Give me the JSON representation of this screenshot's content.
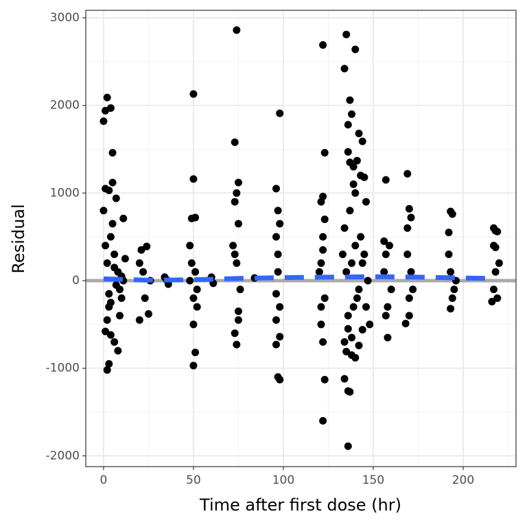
{
  "chart_data": {
    "type": "scatter",
    "x_label": "Time after first dose (hr)",
    "y_label": "Residual",
    "xlim": [
      -9.9,
      229.4
    ],
    "ylim": [
      -2123,
      3086
    ],
    "xticks": [
      0,
      50,
      100,
      150,
      200
    ],
    "yticks": [
      -2000,
      -1000,
      0,
      1000,
      2000,
      3000
    ],
    "x_minor_ticks": [
      25,
      75,
      125,
      175,
      225
    ],
    "y_minor_ticks": [
      -1500,
      -500,
      500,
      1500,
      2500
    ],
    "grid": true,
    "color": "#000000",
    "hline": 0,
    "hline_color": "#aaaaaa",
    "x": [
      0,
      1,
      2,
      4,
      5,
      1,
      3,
      5,
      7,
      11,
      8,
      3,
      2,
      6,
      4,
      1,
      3,
      2,
      4,
      6,
      8,
      10,
      12,
      9,
      0,
      5,
      3,
      7,
      10,
      2,
      1,
      4,
      6,
      9,
      11,
      20,
      21,
      24,
      25,
      22,
      23,
      26,
      20,
      34,
      36,
      35,
      50,
      50,
      51,
      49,
      50,
      51,
      48,
      52,
      50,
      49,
      51,
      52,
      60,
      61,
      50,
      48,
      74,
      73,
      75,
      74,
      73,
      75,
      72,
      74,
      73,
      75,
      74,
      76,
      84,
      73,
      75,
      98,
      96,
      97,
      98,
      96,
      97,
      98,
      96,
      97,
      98,
      96,
      97,
      96,
      98,
      122,
      123,
      122,
      121,
      123,
      122,
      121,
      122,
      123,
      122,
      121,
      123,
      122,
      121,
      120,
      135,
      134,
      137,
      138,
      140,
      136,
      142,
      144,
      136,
      137,
      139,
      141,
      143,
      145,
      139,
      140,
      146,
      136,
      134,
      136,
      137,
      135,
      138,
      140,
      142,
      144,
      138,
      134,
      136,
      139,
      141,
      143,
      145,
      137,
      134,
      140,
      142,
      144,
      146,
      135,
      138,
      147,
      133,
      148,
      136,
      157,
      158,
      156,
      157,
      158,
      159,
      160,
      156,
      157,
      169,
      170,
      171,
      169,
      170,
      168,
      169,
      170,
      171,
      172,
      193,
      194,
      192,
      193,
      194,
      192,
      193,
      195,
      196,
      217,
      218,
      219,
      217,
      218,
      216,
      219,
      218,
      220,
      217
    ],
    "values": [
      1820,
      1940,
      2090,
      1970,
      1460,
      1050,
      1030,
      1120,
      940,
      710,
      -800,
      -950,
      -1020,
      -700,
      -620,
      -580,
      -300,
      200,
      500,
      300,
      100,
      -200,
      250,
      -400,
      800,
      650,
      -150,
      -50,
      50,
      -450,
      400,
      -250,
      150,
      -100,
      0,
      -450,
      350,
      390,
      -380,
      100,
      -200,
      0,
      200,
      40,
      -40,
      10,
      2130,
      1160,
      720,
      710,
      -970,
      -820,
      400,
      -300,
      -500,
      200,
      100,
      -100,
      40,
      -30,
      -200,
      0,
      2860,
      1580,
      1120,
      1000,
      900,
      650,
      400,
      -730,
      -600,
      -350,
      200,
      -100,
      30,
      300,
      -450,
      1910,
      1050,
      800,
      -640,
      -730,
      -1100,
      -1130,
      500,
      300,
      -300,
      -150,
      100,
      -450,
      650,
      2690,
      1460,
      960,
      900,
      700,
      500,
      -500,
      -700,
      -1130,
      -1600,
      200,
      -200,
      350,
      -300,
      100,
      2810,
      2420,
      2060,
      1900,
      2640,
      1780,
      1680,
      1590,
      1470,
      1350,
      1300,
      1370,
      1200,
      1180,
      1100,
      1000,
      900,
      -1890,
      -1120,
      -1260,
      -1270,
      -810,
      -850,
      -880,
      -740,
      -560,
      -650,
      -700,
      -400,
      -300,
      -200,
      500,
      300,
      800,
      600,
      400,
      -100,
      200,
      -300,
      100,
      200,
      0,
      300,
      -500,
      -550,
      1150,
      -650,
      450,
      300,
      -300,
      400,
      -100,
      100,
      -400,
      1220,
      820,
      720,
      600,
      -400,
      -490,
      300,
      -200,
      100,
      -100,
      790,
      760,
      550,
      -320,
      -200,
      300,
      100,
      -100,
      0,
      600,
      570,
      560,
      400,
      380,
      -240,
      -200,
      100,
      200,
      -100
    ],
    "trend": {
      "color": "#3366ff",
      "x": [
        0,
        25,
        50,
        75,
        100,
        125,
        150,
        175,
        200,
        215
      ],
      "values": [
        20,
        5,
        10,
        25,
        35,
        40,
        45,
        40,
        30,
        25
      ]
    }
  }
}
